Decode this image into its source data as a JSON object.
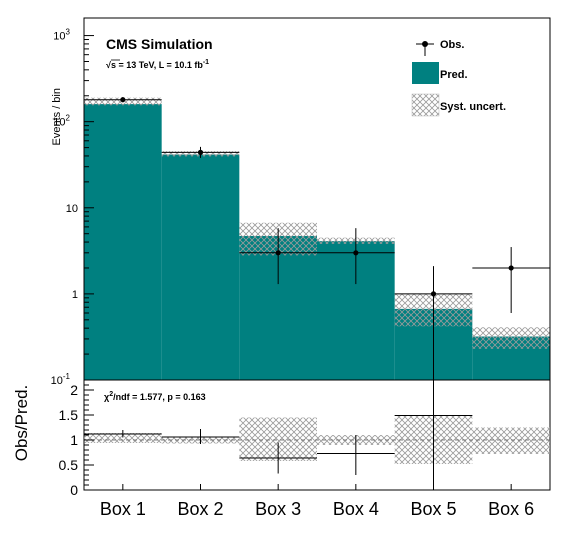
{
  "chart_data": [
    {
      "panel": "main",
      "type": "histogram",
      "yscale": "log",
      "ylim": [
        0.1,
        1600
      ],
      "ylabel": "Events / bin",
      "categories": [
        "Box 1",
        "Box 2",
        "Box 3",
        "Box 4",
        "Box 5",
        "Box 6"
      ],
      "y_ticks": [
        {
          "value": 0.1,
          "base": "10",
          "exp": "-1"
        },
        {
          "value": 1,
          "base": "1",
          "exp": ""
        },
        {
          "value": 10,
          "base": "10",
          "exp": ""
        },
        {
          "value": 100,
          "base": "10",
          "exp": "2"
        },
        {
          "value": 1000,
          "base": "10",
          "exp": "3"
        }
      ],
      "series": [
        {
          "name": "Obs.",
          "type": "points",
          "values": [
            180,
            44,
            3,
            3,
            1,
            2
          ],
          "err_low": [
            168,
            38,
            1.3,
            1.3,
            0.1,
            0.6
          ],
          "err_high": [
            193,
            51,
            5.8,
            5.8,
            2.1,
            3.5
          ]
        },
        {
          "name": "Pred.",
          "type": "filled_step",
          "color": "#008080",
          "values": [
            160,
            41.5,
            4.7,
            4.1,
            0.67,
            0.32
          ]
        },
        {
          "name": "Syst. uncert.",
          "type": "hatched_band",
          "low": [
            155,
            39.5,
            2.8,
            3.8,
            0.42,
            0.23
          ],
          "high": [
            190,
            45.5,
            6.7,
            4.5,
            1.0,
            0.41
          ]
        }
      ],
      "title": "CMS Simulation",
      "subtitle": {
        "pre": "√s = 13 TeV, L = 10.1 fb",
        "sup": "-1"
      },
      "legend_position": "top-right"
    },
    {
      "panel": "ratio",
      "type": "ratio",
      "ylabel": "Obs/Pred.",
      "ylim": [
        0,
        2.2
      ],
      "y_ticks": [
        "0",
        "0.5",
        "1",
        "1.5",
        "2"
      ],
      "annotation": {
        "chi": "χ",
        "sup": "2",
        "rest": "/ndf = 1.577, p = 0.163"
      },
      "categories": [
        "Box 1",
        "Box 2",
        "Box 3",
        "Box 4",
        "Box 5",
        "Box 6"
      ],
      "series": [
        {
          "name": "Obs./Pred.",
          "values": [
            1.12,
            1.06,
            0.64,
            0.73,
            1.49,
            null
          ],
          "err_low": [
            1.05,
            0.92,
            0.33,
            0.3,
            0.0,
            null
          ],
          "err_high": [
            1.2,
            1.22,
            0.95,
            1.1,
            2.2,
            null
          ]
        },
        {
          "name": "Syst. uncert.",
          "low": [
            0.94,
            0.93,
            0.58,
            0.9,
            0.52,
            0.72
          ],
          "high": [
            1.14,
            1.07,
            1.45,
            1.1,
            1.5,
            1.25
          ]
        }
      ]
    }
  ],
  "colors": {
    "pred": "#008080",
    "band": "#9a9a9a"
  }
}
